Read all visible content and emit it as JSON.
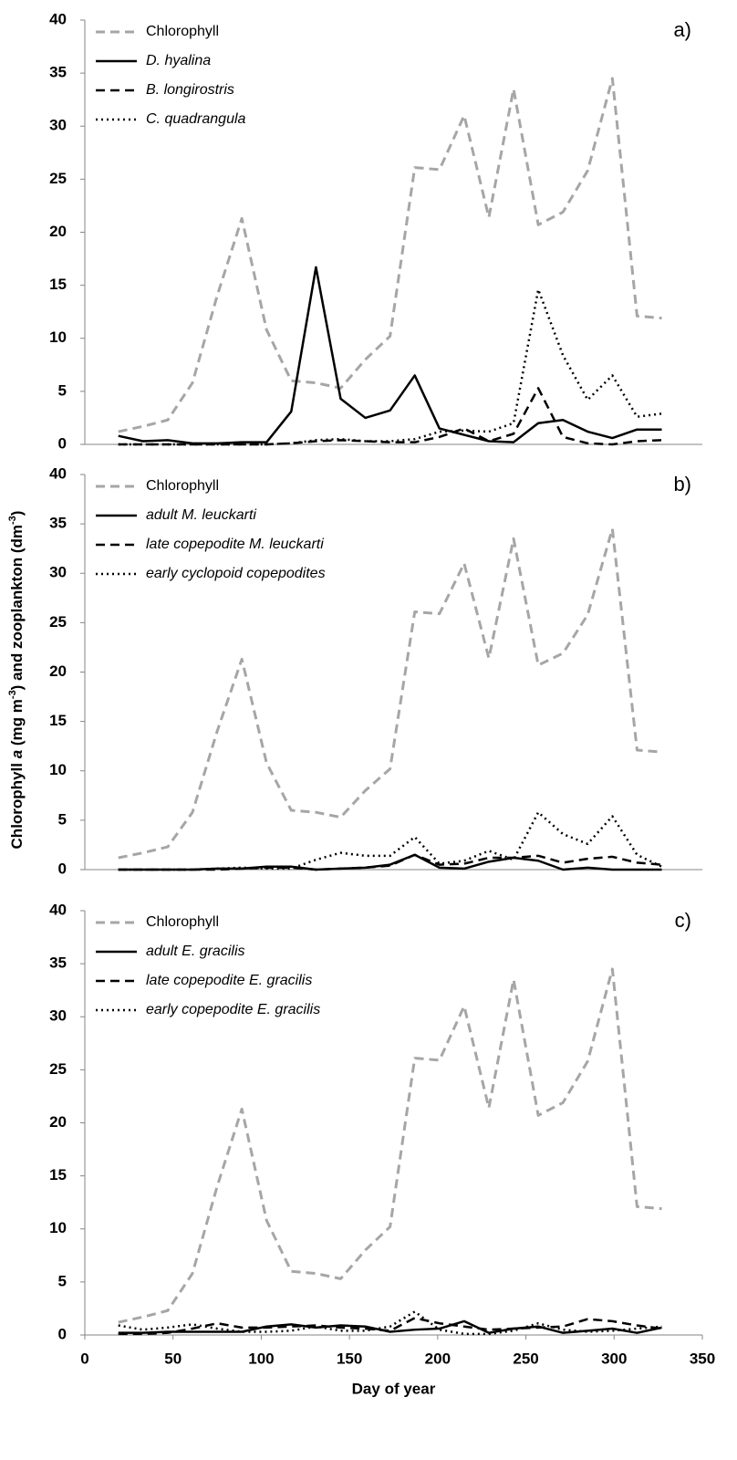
{
  "chart_data": [
    {
      "type": "line",
      "label": "a)",
      "xlim": [
        0,
        350
      ],
      "ylim": [
        0,
        40
      ],
      "yticks": [
        0,
        5,
        10,
        15,
        20,
        25,
        30,
        35,
        40
      ],
      "x": [
        19,
        33,
        47,
        61,
        75,
        89,
        103,
        117,
        131,
        145,
        159,
        173,
        187,
        201,
        215,
        229,
        243,
        257,
        271,
        285,
        299,
        313,
        327
      ],
      "series": [
        {
          "name": "Chlorophyll",
          "color": "#a6a6a6",
          "style": "dashed",
          "italic": false,
          "values": [
            1.2,
            1.7,
            2.3,
            5.8,
            14.0,
            21.3,
            10.8,
            6.0,
            5.8,
            5.3,
            8.0,
            10.2,
            26.1,
            25.9,
            31.0,
            21.4,
            33.5,
            20.7,
            21.9,
            25.8,
            34.5,
            12.1,
            11.9
          ]
        },
        {
          "name": "D. hyalina",
          "color": "#000000",
          "style": "solid",
          "italic": true,
          "values": [
            0.8,
            0.3,
            0.4,
            0.1,
            0.1,
            0.2,
            0.2,
            3.1,
            16.7,
            4.3,
            2.5,
            3.2,
            6.5,
            1.5,
            0.9,
            0.3,
            0.2,
            2.0,
            2.3,
            1.2,
            0.6,
            1.4,
            1.4
          ]
        },
        {
          "name": "B. longirostris",
          "color": "#000000",
          "style": "dashed",
          "italic": true,
          "values": [
            0,
            0,
            0,
            0,
            0,
            0,
            0,
            0.1,
            0.3,
            0.4,
            0.3,
            0.2,
            0.2,
            0.7,
            1.5,
            0.3,
            1.0,
            5.3,
            0.7,
            0.1,
            0,
            0.3,
            0.4
          ]
        },
        {
          "name": "C. quadrangula",
          "color": "#000000",
          "style": "dotted",
          "italic": true,
          "values": [
            0,
            0,
            0,
            0,
            0,
            0,
            0,
            0.1,
            0.4,
            0.5,
            0.3,
            0.3,
            0.5,
            1.2,
            1.3,
            1.2,
            2.0,
            14.6,
            8.4,
            4.2,
            6.5,
            2.6,
            2.9
          ]
        }
      ]
    },
    {
      "type": "line",
      "label": "b)",
      "xlim": [
        0,
        350
      ],
      "ylim": [
        0,
        40
      ],
      "yticks": [
        0,
        5,
        10,
        15,
        20,
        25,
        30,
        35,
        40
      ],
      "ylabel": [
        {
          "text": "Chlorophyll ",
          "style": "normal"
        },
        {
          "text": "a",
          "style": "italic"
        },
        {
          "text": " (mg m",
          "style": "normal"
        },
        {
          "text": "-3",
          "style": "sup"
        },
        {
          "text": ") and zooplankton (dm",
          "style": "normal"
        },
        {
          "text": "-3",
          "style": "sup"
        },
        {
          "text": ")",
          "style": "normal"
        }
      ],
      "x": [
        19,
        33,
        47,
        61,
        75,
        89,
        103,
        117,
        131,
        145,
        159,
        173,
        187,
        201,
        215,
        229,
        243,
        257,
        271,
        285,
        299,
        313,
        327
      ],
      "series": [
        {
          "name": "Chlorophyll",
          "color": "#a6a6a6",
          "style": "dashed",
          "italic": false,
          "values": [
            1.2,
            1.7,
            2.3,
            5.8,
            14.0,
            21.3,
            10.8,
            6.0,
            5.8,
            5.3,
            8.0,
            10.2,
            26.1,
            25.9,
            31.0,
            21.4,
            33.5,
            20.7,
            21.9,
            25.8,
            34.5,
            12.1,
            11.9
          ]
        },
        {
          "name": "adult M. leuckarti",
          "color": "#000000",
          "style": "solid",
          "italic": true,
          "values": [
            0,
            0,
            0,
            0,
            0.1,
            0.1,
            0.3,
            0.3,
            0,
            0.1,
            0.2,
            0.5,
            1.5,
            0.2,
            0.1,
            0.8,
            1.2,
            0.9,
            0,
            0.2,
            0,
            0,
            0
          ]
        },
        {
          "name": "late copepodite M. leuckarti",
          "color": "#000000",
          "style": "dashed",
          "italic": true,
          "values": [
            0,
            0,
            0,
            0,
            0,
            0.1,
            0.2,
            0.2,
            0,
            0.1,
            0.2,
            0.4,
            1.5,
            0.5,
            0.6,
            1.2,
            1.2,
            1.4,
            0.7,
            1.1,
            1.3,
            0.7,
            0.5
          ]
        },
        {
          "name": "early cyclopoid copepodites",
          "color": "#000000",
          "style": "dotted",
          "italic": true,
          "values": [
            0,
            0,
            0,
            0,
            0.1,
            0.2,
            0.1,
            0.1,
            1.0,
            1.7,
            1.4,
            1.4,
            3.3,
            0.6,
            0.9,
            1.9,
            1.0,
            5.8,
            3.6,
            2.6,
            5.4,
            1.5,
            0.3
          ]
        }
      ]
    },
    {
      "type": "line",
      "label": "c)",
      "xlim": [
        0,
        350
      ],
      "ylim": [
        0,
        40
      ],
      "yticks": [
        0,
        5,
        10,
        15,
        20,
        25,
        30,
        35,
        40
      ],
      "xticks": [
        0,
        50,
        100,
        150,
        200,
        250,
        300,
        350
      ],
      "xlabel": "Day of year",
      "x": [
        19,
        33,
        47,
        61,
        75,
        89,
        103,
        117,
        131,
        145,
        159,
        173,
        187,
        201,
        215,
        229,
        243,
        257,
        271,
        285,
        299,
        313,
        327
      ],
      "series": [
        {
          "name": "Chlorophyll",
          "color": "#a6a6a6",
          "style": "dashed",
          "italic": false,
          "values": [
            1.2,
            1.7,
            2.3,
            5.8,
            14.0,
            21.3,
            10.8,
            6.0,
            5.8,
            5.3,
            8.0,
            10.2,
            26.1,
            25.9,
            31.0,
            21.4,
            33.5,
            20.7,
            21.9,
            25.8,
            34.5,
            12.1,
            11.9
          ]
        },
        {
          "name": "adult E. gracilis",
          "color": "#000000",
          "style": "solid",
          "italic": true,
          "values": [
            0.2,
            0.2,
            0.3,
            0.3,
            0.3,
            0.3,
            0.8,
            1.0,
            0.7,
            0.9,
            0.8,
            0.3,
            0.5,
            0.6,
            1.3,
            0.2,
            0.6,
            0.8,
            0.2,
            0.4,
            0.6,
            0.2,
            0.7
          ]
        },
        {
          "name": "late copepodite E. gracilis",
          "color": "#000000",
          "style": "dashed",
          "italic": true,
          "values": [
            0.1,
            0.1,
            0.2,
            0.6,
            1.1,
            0.7,
            0.7,
            0.8,
            0.9,
            0.7,
            0.6,
            0.4,
            1.6,
            1.1,
            0.8,
            0.5,
            0.6,
            0.7,
            0.8,
            1.5,
            1.3,
            0.9,
            0.6
          ]
        },
        {
          "name": "early copepodite E. gracilis",
          "color": "#000000",
          "style": "dotted",
          "italic": true,
          "values": [
            0.9,
            0.5,
            0.7,
            1.0,
            0.6,
            0.3,
            0.3,
            0.4,
            0.8,
            0.4,
            0.4,
            0.8,
            2.2,
            0.5,
            0.1,
            0.1,
            0.4,
            1.1,
            0.5,
            0.3,
            0.4,
            0.6,
            0.8
          ]
        }
      ]
    }
  ]
}
